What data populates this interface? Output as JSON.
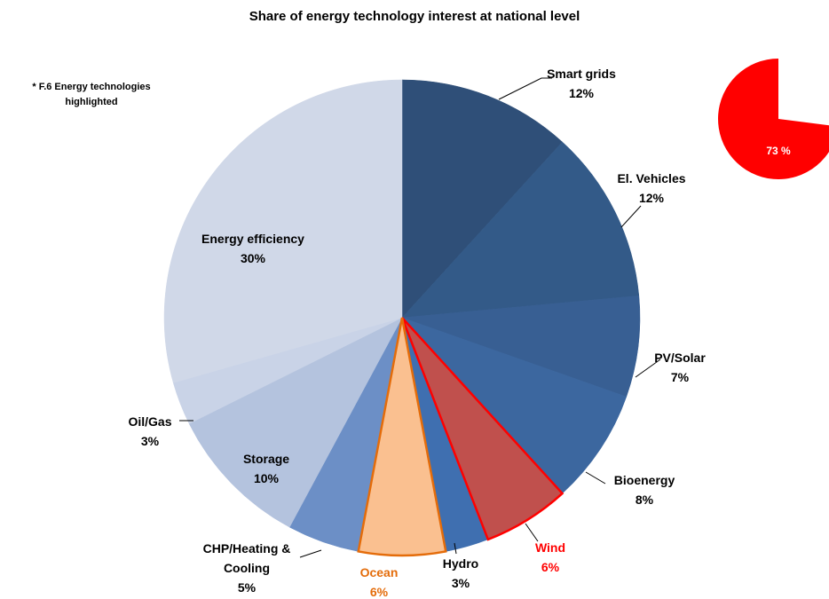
{
  "chart_data": [
    {
      "type": "pie",
      "title": "Share of energy technology interest at national level",
      "annotation": [
        "* F.6 Energy technologies",
        "highlighted"
      ],
      "categories": [
        "Smart grids",
        "El. Vehicles",
        "PV/Solar",
        "Bioenergy",
        "Wind",
        "Hydro",
        "Ocean",
        "CHP/Heating & Cooling",
        "Storage",
        "Oil/Gas",
        "Energy efficiency"
      ],
      "values": [
        12,
        12,
        7,
        8,
        6,
        3,
        6,
        5,
        10,
        3,
        30
      ],
      "value_labels": [
        "12%",
        "12%",
        "7%",
        "8%",
        "6%",
        "3%",
        "6%",
        "5%",
        "10%",
        "3%",
        "30%"
      ],
      "colors": [
        "#2f4f78",
        "#335a88",
        "#385f93",
        "#3c679f",
        "#c0504d",
        "#3f6fb0",
        "#fac090",
        "#6c8fc6",
        "#b4c3de",
        "#c9d3e7",
        "#d0d8e8"
      ],
      "edge_colors": [
        null,
        null,
        null,
        null,
        "#ff0000",
        null,
        "#e46c0a",
        null,
        null,
        null,
        null
      ]
    },
    {
      "type": "pie",
      "values": [
        73
      ],
      "value_labels": [
        "73 %"
      ],
      "colors": [
        "#ff0000"
      ]
    }
  ]
}
